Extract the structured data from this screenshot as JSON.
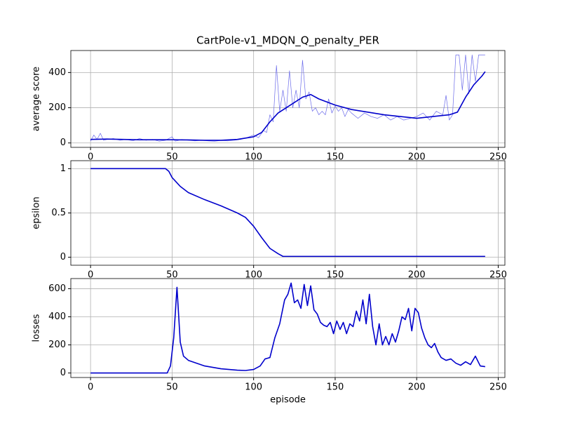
{
  "chart_data": [
    {
      "type": "line",
      "title": "CartPole-v1_MDQN_Q_penalty_PER",
      "ylabel": "average score",
      "xlim": [
        -12.1,
        254.1
      ],
      "xticks": [
        0,
        50,
        100,
        150,
        200,
        250
      ],
      "ylim": [
        -25,
        525
      ],
      "yticks": [
        0,
        200,
        400
      ],
      "grid": true,
      "series": [
        {
          "color": "#6b6bea",
          "linewidth": 0.7,
          "x": [
            0,
            2,
            4,
            6,
            8,
            10,
            14,
            18,
            22,
            26,
            30,
            34,
            38,
            42,
            46,
            50,
            52,
            56,
            60,
            64,
            68,
            72,
            76,
            80,
            84,
            88,
            92,
            96,
            100,
            103,
            106,
            108,
            110,
            112,
            114,
            116,
            118,
            120,
            122,
            124,
            126,
            128,
            130,
            132,
            134,
            136,
            138,
            140,
            142,
            144,
            146,
            148,
            150,
            152,
            154,
            156,
            158,
            160,
            164,
            168,
            172,
            176,
            180,
            184,
            188,
            192,
            196,
            200,
            204,
            208,
            212,
            216,
            218,
            220,
            222,
            224,
            226,
            228,
            230,
            232,
            234,
            236,
            238,
            240,
            242
          ],
          "values": [
            10,
            45,
            20,
            55,
            15,
            20,
            25,
            15,
            20,
            12,
            25,
            15,
            20,
            10,
            15,
            35,
            10,
            20,
            15,
            12,
            15,
            12,
            10,
            14,
            12,
            15,
            20,
            30,
            45,
            30,
            70,
            60,
            160,
            120,
            440,
            180,
            300,
            180,
            410,
            200,
            300,
            200,
            470,
            250,
            290,
            180,
            200,
            160,
            180,
            160,
            250,
            170,
            210,
            180,
            200,
            150,
            190,
            170,
            140,
            170,
            150,
            140,
            160,
            130,
            150,
            130,
            140,
            150,
            170,
            130,
            180,
            160,
            270,
            130,
            160,
            500,
            500,
            300,
            500,
            280,
            500,
            350,
            500,
            500,
            500
          ]
        },
        {
          "color": "#0000cc",
          "linewidth": 1.6,
          "x": [
            0,
            10,
            20,
            30,
            40,
            50,
            60,
            70,
            80,
            90,
            100,
            105,
            110,
            115,
            120,
            125,
            130,
            135,
            140,
            150,
            160,
            170,
            180,
            190,
            200,
            210,
            220,
            225,
            230,
            235,
            240,
            242
          ],
          "values": [
            20,
            22,
            20,
            18,
            18,
            18,
            17,
            15,
            15,
            20,
            35,
            60,
            120,
            170,
            200,
            230,
            260,
            275,
            250,
            215,
            190,
            175,
            160,
            150,
            140,
            150,
            160,
            175,
            260,
            330,
            380,
            405
          ]
        }
      ]
    },
    {
      "type": "line",
      "ylabel": "epsilon",
      "xlim": [
        -12.1,
        254.1
      ],
      "xticks": [
        0,
        50,
        100,
        150,
        200,
        250
      ],
      "ylim": [
        -0.09,
        1.09
      ],
      "yticks": [
        0.0,
        0.5,
        1.0
      ],
      "grid": true,
      "series": [
        {
          "color": "#0000cc",
          "linewidth": 1.6,
          "x": [
            0,
            46,
            48,
            50,
            55,
            60,
            70,
            80,
            90,
            95,
            100,
            105,
            110,
            115,
            118,
            242
          ],
          "values": [
            1,
            1,
            0.97,
            0.9,
            0.8,
            0.73,
            0.65,
            0.58,
            0.5,
            0.45,
            0.35,
            0.22,
            0.1,
            0.04,
            0.01,
            0.01
          ]
        }
      ]
    },
    {
      "type": "line",
      "ylabel": "losses",
      "xlabel": "episode",
      "xlim": [
        -12.1,
        254.1
      ],
      "xticks": [
        0,
        50,
        100,
        150,
        200,
        250
      ],
      "ylim": [
        -32,
        672
      ],
      "yticks": [
        0,
        200,
        400,
        600
      ],
      "grid": true,
      "series": [
        {
          "color": "#0000cc",
          "linewidth": 1.6,
          "x": [
            0,
            47,
            49,
            51,
            53,
            55,
            57,
            60,
            65,
            70,
            75,
            80,
            85,
            90,
            95,
            100,
            104,
            107,
            110,
            113,
            116,
            119,
            121,
            123,
            125,
            127,
            129,
            131,
            133,
            135,
            137,
            139,
            141,
            143,
            145,
            147,
            149,
            151,
            153,
            155,
            157,
            159,
            161,
            163,
            165,
            167,
            169,
            171,
            173,
            175,
            177,
            179,
            181,
            183,
            185,
            187,
            189,
            191,
            193,
            195,
            197,
            199,
            201,
            203,
            205,
            207,
            209,
            211,
            213,
            215,
            218,
            221,
            224,
            227,
            230,
            233,
            236,
            239,
            242
          ],
          "values": [
            0,
            0,
            50,
            250,
            610,
            220,
            120,
            90,
            70,
            50,
            40,
            30,
            25,
            20,
            18,
            25,
            50,
            100,
            110,
            250,
            350,
            520,
            560,
            640,
            500,
            520,
            460,
            630,
            480,
            620,
            450,
            420,
            360,
            340,
            330,
            360,
            280,
            370,
            310,
            360,
            280,
            350,
            330,
            440,
            370,
            520,
            350,
            560,
            330,
            200,
            350,
            200,
            260,
            200,
            280,
            220,
            300,
            400,
            380,
            460,
            300,
            460,
            430,
            320,
            250,
            200,
            180,
            210,
            150,
            110,
            90,
            100,
            70,
            55,
            80,
            60,
            120,
            50,
            45
          ]
        }
      ]
    }
  ]
}
